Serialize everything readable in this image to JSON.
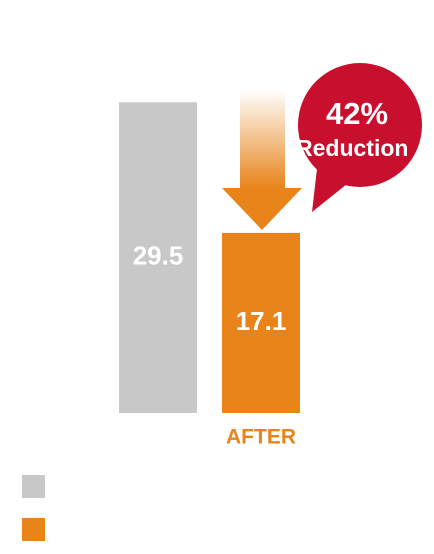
{
  "chart_data": {
    "type": "bar",
    "categories": [
      null,
      "AFTER"
    ],
    "values": [
      29.5,
      17.1
    ],
    "colors": [
      "#c8c8c8",
      "#e8841a"
    ],
    "ylim": [
      0,
      30
    ],
    "annotation": {
      "title": "42%",
      "subtitle": "Reduction",
      "color": "#c8102e"
    }
  }
}
